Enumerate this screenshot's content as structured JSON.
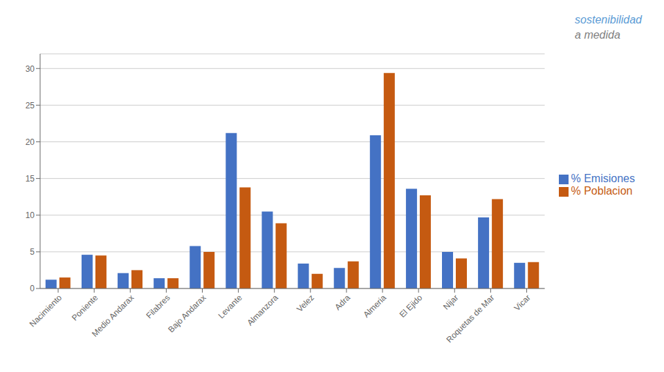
{
  "chart_data": {
    "type": "bar",
    "categories": [
      "Nacimiento",
      "Poniente",
      "Medio Andarax",
      "Filabres",
      "Bajo Andarax",
      "Levante",
      "Almanzora",
      "Velez",
      "Adra",
      "Almeria",
      "El Ejido",
      "Nijar",
      "Roquetas de Mar",
      "Vicar"
    ],
    "series": [
      {
        "name": "% Emisiones",
        "color": "#4472C4",
        "values": [
          1.2,
          4.6,
          2.1,
          1.4,
          5.8,
          21.2,
          10.5,
          3.4,
          2.8,
          20.9,
          13.6,
          5.0,
          9.7,
          3.5
        ]
      },
      {
        "name": "% Poblacion",
        "color": "#C55A11",
        "values": [
          1.5,
          4.5,
          2.5,
          1.4,
          5.0,
          13.8,
          8.9,
          2.0,
          3.7,
          29.4,
          12.7,
          4.1,
          12.2,
          3.6
        ]
      }
    ],
    "ylim": [
      0,
      32
    ],
    "yticks": [
      0,
      5,
      10,
      15,
      20,
      25,
      30
    ],
    "grid": true,
    "legend": "right",
    "annotations": [
      {
        "text": "sostenibilidad",
        "color": "#5B9BD5"
      },
      {
        "text": "a medida",
        "color": "#7F7F7F"
      }
    ]
  }
}
